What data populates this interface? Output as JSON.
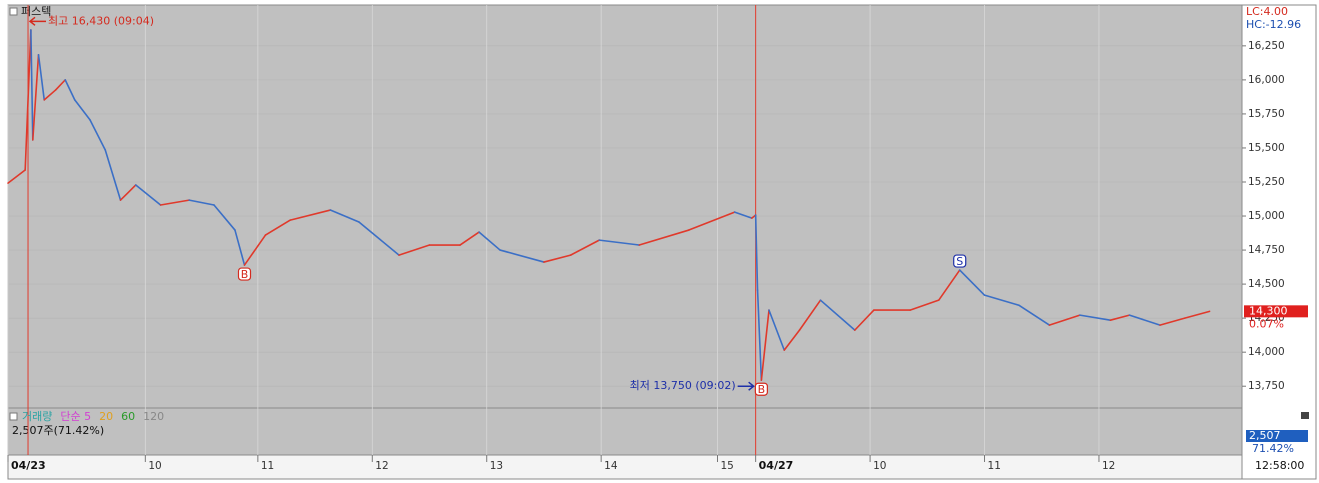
{
  "chart_data": {
    "type": "line",
    "title": "퍼스텍",
    "lc": "LC:4.00",
    "hc": "HC:-12.96",
    "up_color": "#e0392b",
    "down_color": "#3b6fc6",
    "x": [
      0,
      9,
      12,
      13,
      16,
      19,
      25,
      30,
      35,
      43,
      51,
      59,
      67,
      80,
      95,
      108,
      119,
      124,
      135,
      148,
      169,
      184,
      205,
      221,
      237,
      247,
      258,
      281,
      295,
      310,
      331,
      357,
      381,
      390,
      392,
      393,
      395,
      399,
      407,
      415,
      426,
      444,
      454,
      473,
      488,
      499,
      512,
      530,
      546,
      562,
      578,
      588,
      604,
      617,
      630
    ],
    "values": [
      15242,
      15338,
      16367,
      15559,
      16184,
      15853,
      15926,
      16000,
      15853,
      15706,
      15485,
      15117,
      15228,
      15081,
      15117,
      15081,
      14897,
      14640,
      14860,
      14970,
      15044,
      14956,
      14713,
      14787,
      14787,
      14882,
      14750,
      14662,
      14713,
      14823,
      14787,
      14897,
      15029,
      14985,
      15007,
      14456,
      13794,
      14309,
      14015,
      14162,
      14382,
      14162,
      14309,
      14309,
      14382,
      14603,
      14419,
      14345,
      14199,
      14272,
      14235,
      14272,
      14199,
      14250,
      14300
    ],
    "xlim": [
      0,
      647
    ],
    "ylim": [
      13590,
      16550
    ],
    "xticks": [
      {
        "value": 0,
        "label": "04/23"
      },
      {
        "value": 72,
        "label": "10"
      },
      {
        "value": 131,
        "label": "11"
      },
      {
        "value": 191,
        "label": "12"
      },
      {
        "value": 251,
        "label": "13"
      },
      {
        "value": 311,
        "label": "14"
      },
      {
        "value": 372,
        "label": "15"
      },
      {
        "value": 392,
        "label": "04/27"
      },
      {
        "value": 452,
        "label": "10"
      },
      {
        "value": 512,
        "label": "11"
      },
      {
        "value": 572,
        "label": "12"
      }
    ],
    "yticks": [
      {
        "value": 13750,
        "label": "13,750"
      },
      {
        "value": 14000,
        "label": "14,000"
      },
      {
        "value": 14250,
        "label": "14,250"
      },
      {
        "value": 14500,
        "label": "14,500"
      },
      {
        "value": 14750,
        "label": "14,750"
      },
      {
        "value": 15000,
        "label": "15,000"
      },
      {
        "value": 15250,
        "label": "15,250"
      },
      {
        "value": 15500,
        "label": "15,500"
      },
      {
        "value": 15750,
        "label": "15,750"
      },
      {
        "value": 16000,
        "label": "16,000"
      },
      {
        "value": 16250,
        "label": "16,250"
      }
    ],
    "grid": true,
    "annotations": [
      {
        "text": "최고 16,430 (09:04)",
        "x": 10.5,
        "y": 16430,
        "color": "#d42a1e"
      },
      {
        "text": "최저 13,750 (09:02)",
        "x": 392,
        "y": 13750,
        "color": "#1d2fa8"
      }
    ],
    "markers": [
      {
        "label": "B",
        "x": 124,
        "y": 14640
      },
      {
        "label": "B",
        "x": 395,
        "y": 13794
      },
      {
        "label": "S",
        "x": 499,
        "y": 14603
      }
    ],
    "current_price": {
      "value": 14300,
      "label": "14,300"
    },
    "change": "0.07%",
    "volume": {
      "legend": [
        {
          "name": "거래량",
          "color": "#2aa3a3"
        },
        {
          "name": "단순 5",
          "color": "#d23fd2"
        },
        {
          "name": "20",
          "color": "#e0a020"
        },
        {
          "name": "60",
          "color": "#2a9a2a"
        },
        {
          "name": "120",
          "color": "#888888"
        }
      ],
      "summary": "2,507주(71.42%)",
      "last": "2,507",
      "last_pct": "71.42%"
    },
    "time": "12:58:00"
  }
}
